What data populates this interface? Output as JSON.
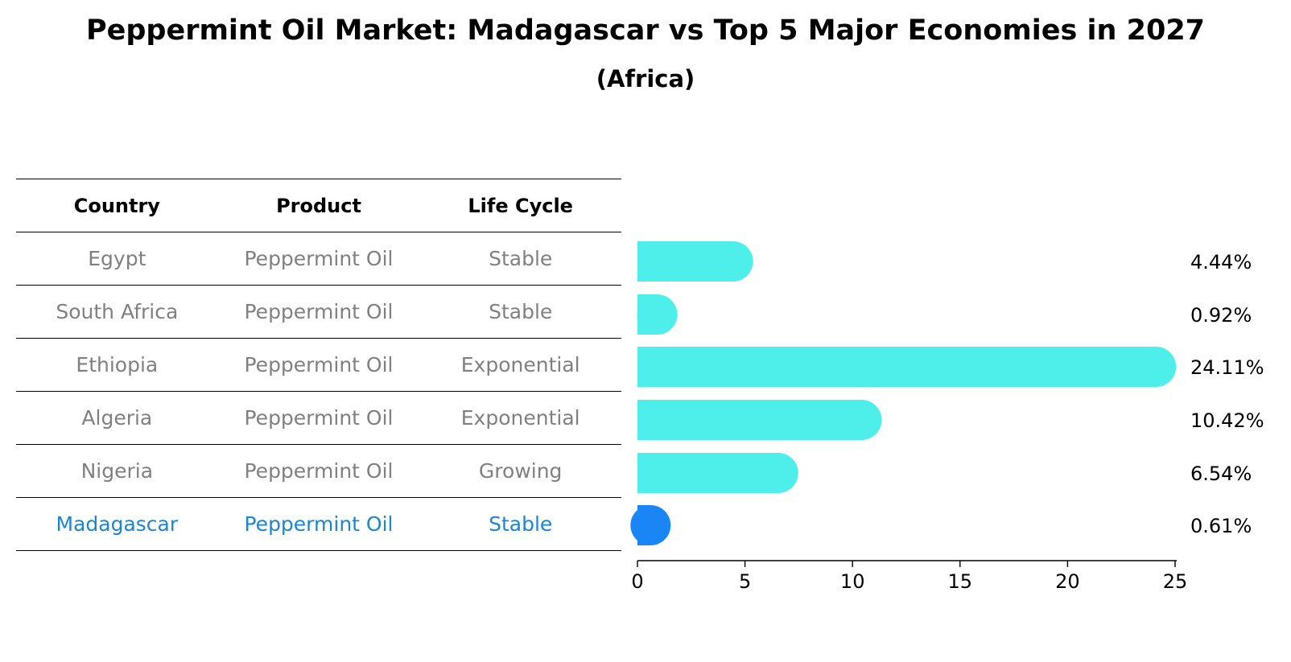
{
  "title": "Peppermint Oil Market: Madagascar vs Top 5 Major Economies in 2027",
  "subtitle": "(Africa)",
  "table": {
    "headers": [
      "Country",
      "Product",
      "Life Cycle"
    ],
    "rows": [
      [
        "Egypt",
        "Peppermint Oil",
        "Stable"
      ],
      [
        "South Africa",
        "Peppermint Oil",
        "Stable"
      ],
      [
        "Ethiopia",
        "Peppermint Oil",
        "Exponential"
      ],
      [
        "Algeria",
        "Peppermint Oil",
        "Exponential"
      ],
      [
        "Nigeria",
        "Peppermint Oil",
        "Growing"
      ],
      [
        "Madagascar",
        "Peppermint Oil",
        "Stable"
      ]
    ]
  },
  "chart_data": {
    "type": "bar",
    "orientation": "horizontal",
    "categories": [
      "Egypt",
      "South Africa",
      "Ethiopia",
      "Algeria",
      "Nigeria",
      "Madagascar"
    ],
    "values": [
      4.44,
      0.92,
      24.11,
      10.42,
      6.54,
      0.61
    ],
    "value_labels": [
      "4.44%",
      "0.92%",
      "24.11%",
      "10.42%",
      "6.54%",
      "0.61%"
    ],
    "xlim": [
      0,
      25
    ],
    "xticks": [
      0,
      5,
      10,
      15,
      20,
      25
    ],
    "highlight_index": 5,
    "colors": {
      "bar": "#4eefeb",
      "highlight": "#1a86f5",
      "highlight_text": "#1a86d4",
      "text_muted": "#808080"
    },
    "grid": false
  }
}
